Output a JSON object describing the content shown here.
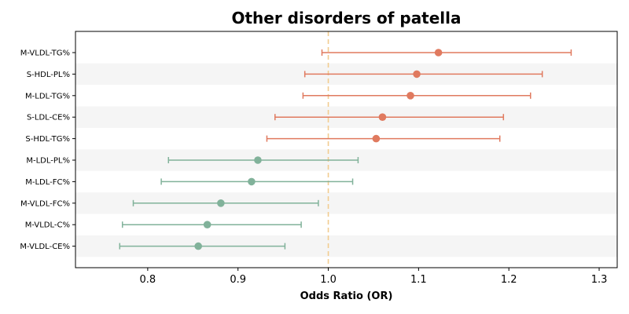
{
  "chart_data": {
    "type": "forest",
    "title": "Other disorders of patella",
    "xlabel": "Odds Ratio (OR)",
    "ylabel": "",
    "xlim": [
      0.72,
      1.32
    ],
    "xticks": [
      "0.8",
      "0.9",
      "1.0",
      "1.1",
      "1.2",
      "1.3"
    ],
    "reference_line": 1.0,
    "grid": false,
    "row_shading": true,
    "colors": {
      "positive": "#e07a5f",
      "negative": "#81b29a",
      "reference": "#f2cc8f",
      "stripe": "#f5f5f5"
    },
    "rows": [
      {
        "label": "M-VLDL-TG%",
        "or": 1.122,
        "lower": 0.993,
        "upper": 1.269
      },
      {
        "label": "S-HDL-PL%",
        "or": 1.098,
        "lower": 0.974,
        "upper": 1.237
      },
      {
        "label": "M-LDL-TG%",
        "or": 1.091,
        "lower": 0.972,
        "upper": 1.224
      },
      {
        "label": "S-LDL-CE%",
        "or": 1.06,
        "lower": 0.941,
        "upper": 1.194
      },
      {
        "label": "S-HDL-TG%",
        "or": 1.053,
        "lower": 0.932,
        "upper": 1.19
      },
      {
        "label": "M-LDL-PL%",
        "or": 0.922,
        "lower": 0.823,
        "upper": 1.033
      },
      {
        "label": "M-LDL-FC%",
        "or": 0.915,
        "lower": 0.815,
        "upper": 1.027
      },
      {
        "label": "M-VLDL-FC%",
        "or": 0.881,
        "lower": 0.784,
        "upper": 0.989
      },
      {
        "label": "M-VLDL-C%",
        "or": 0.866,
        "lower": 0.772,
        "upper": 0.97
      },
      {
        "label": "M-VLDL-CE%",
        "or": 0.856,
        "lower": 0.769,
        "upper": 0.952
      }
    ]
  }
}
